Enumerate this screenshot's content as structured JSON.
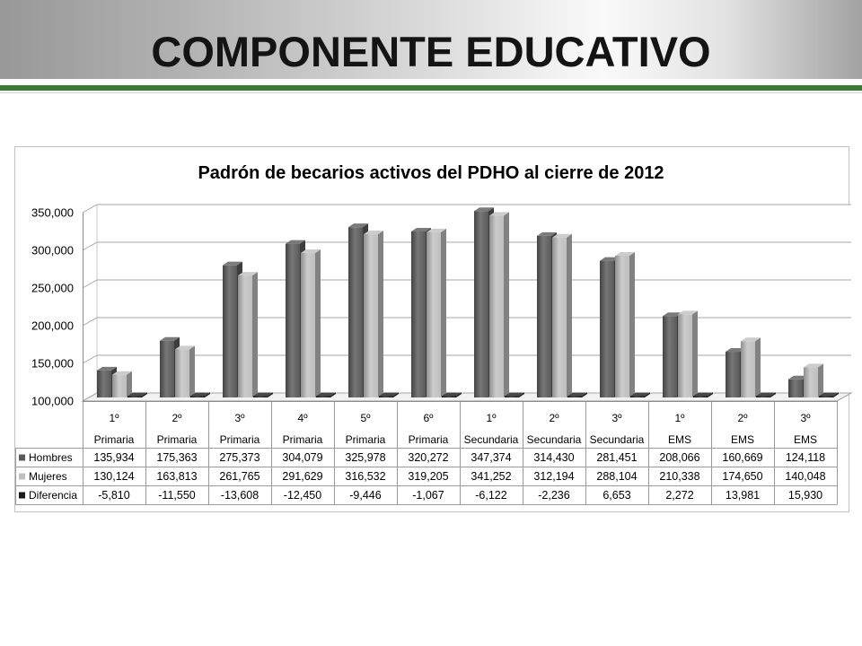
{
  "slide": {
    "title": "COMPONENTE EDUCATIVO"
  },
  "colors": {
    "accent_green": "#367a2f"
  },
  "chart_data": {
    "type": "bar",
    "three_d": true,
    "title": "Padrón de becarios activos del PDHO al cierre de 2012",
    "ylim": [
      100000,
      350000
    ],
    "yticks": [
      100000,
      150000,
      200000,
      250000,
      300000,
      350000
    ],
    "grid": true,
    "legend": "data-table",
    "categories": [
      {
        "grade": "1º",
        "level": "Primaria"
      },
      {
        "grade": "2º",
        "level": "Primaria"
      },
      {
        "grade": "3º",
        "level": "Primaria"
      },
      {
        "grade": "4º",
        "level": "Primaria"
      },
      {
        "grade": "5º",
        "level": "Primaria"
      },
      {
        "grade": "6º",
        "level": "Primaria"
      },
      {
        "grade": "1º",
        "level": "Secundaria"
      },
      {
        "grade": "2º",
        "level": "Secundaria"
      },
      {
        "grade": "3º",
        "level": "Secundaria"
      },
      {
        "grade": "1º",
        "level": "EMS"
      },
      {
        "grade": "2º",
        "level": "EMS"
      },
      {
        "grade": "3º",
        "level": "EMS"
      }
    ],
    "series": [
      {
        "name": "Hombres",
        "color": "#595959",
        "values": [
          135934,
          175363,
          275373,
          304079,
          325978,
          320272,
          347374,
          314430,
          281451,
          208066,
          160669,
          124118
        ]
      },
      {
        "name": "Mujeres",
        "color": "#bfbfbf",
        "values": [
          130124,
          163813,
          261765,
          291629,
          316532,
          319205,
          341252,
          312194,
          288104,
          210338,
          174650,
          140048
        ]
      },
      {
        "name": "Diferencia",
        "color": "#1a1a1a",
        "values": [
          -5810,
          -11550,
          -13608,
          -12450,
          -9446,
          -1067,
          -6122,
          -2236,
          6653,
          2272,
          13981,
          15930
        ]
      }
    ]
  }
}
